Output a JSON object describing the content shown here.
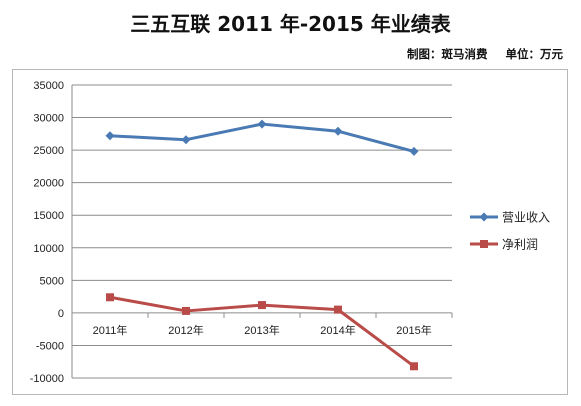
{
  "header": {
    "title": "三五互联 2011 年-2015 年业绩表",
    "maker": "制图：斑马消费",
    "unit": "单位：万元"
  },
  "chart_data": {
    "type": "line",
    "categories": [
      "2011年",
      "2012年",
      "2013年",
      "2014年",
      "2015年"
    ],
    "series": [
      {
        "name": "营业收入",
        "values": [
          27200,
          26600,
          29000,
          27900,
          24800
        ],
        "color": "#4a7ab3",
        "marker": "diamond"
      },
      {
        "name": "净利润",
        "values": [
          2400,
          300,
          1200,
          500,
          -8200
        ],
        "color": "#b94b48",
        "marker": "square"
      }
    ],
    "ylim": [
      -10000,
      35000
    ],
    "yticks": [
      "-10000",
      "-5000",
      "0",
      "5000",
      "10000",
      "15000",
      "20000",
      "25000",
      "30000",
      "35000"
    ],
    "grid": true,
    "legend": "right",
    "xlabel": "",
    "ylabel": ""
  }
}
